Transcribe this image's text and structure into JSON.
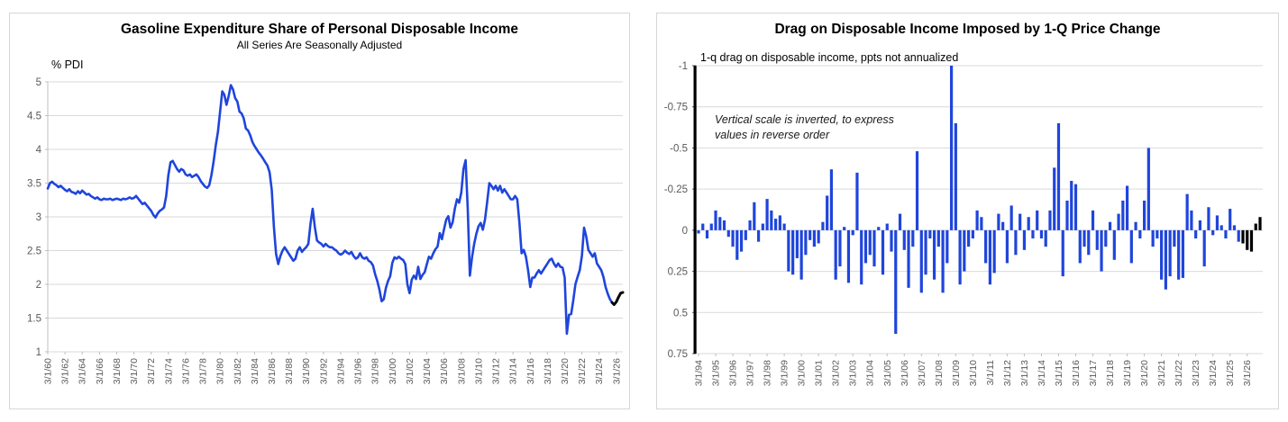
{
  "page": {
    "background": "#ffffff"
  },
  "chart_data": [
    {
      "type": "line",
      "title": "Gasoline Expenditure Share of Personal Disposable Income",
      "subtitle": "All Series Are Seasonally Adjusted",
      "ylabel": "% PDI",
      "x_frequency": "quarterly",
      "x_start": "3/1/60",
      "x_end": "3/1/26",
      "x_tick_every": 8,
      "x_tick_labels": [
        "3/1/60",
        "3/1/62",
        "3/1/64",
        "3/1/66",
        "3/1/68",
        "3/1/70",
        "3/1/72",
        "3/1/74",
        "3/1/76",
        "3/1/78",
        "3/1/80",
        "3/1/82",
        "3/1/84",
        "3/1/86",
        "3/1/88",
        "3/1/90",
        "3/1/92",
        "3/1/94",
        "3/1/96",
        "3/1/98",
        "3/1/00",
        "3/1/02",
        "3/1/04",
        "3/1/06",
        "3/1/08",
        "3/1/10",
        "3/1/12",
        "3/1/14",
        "3/1/16",
        "3/1/18",
        "3/1/20",
        "3/1/22",
        "3/1/24",
        "3/1/26"
      ],
      "y_ticks": [
        5,
        4.5,
        4,
        3.5,
        3,
        2.5,
        2,
        1.5,
        1
      ],
      "y_tick_labels": [
        "5",
        "4.5",
        "4",
        "3.5",
        "3",
        "2.5",
        "2",
        "1.5",
        "1"
      ],
      "ylim": [
        1,
        5
      ],
      "grid": true,
      "legend": "none",
      "line_color": "#1f45dc",
      "forecast_color": "#000000",
      "forecast_start_index": 262,
      "values": [
        3.42,
        3.5,
        3.52,
        3.49,
        3.47,
        3.44,
        3.46,
        3.43,
        3.4,
        3.38,
        3.41,
        3.37,
        3.36,
        3.34,
        3.38,
        3.35,
        3.39,
        3.36,
        3.33,
        3.34,
        3.31,
        3.29,
        3.27,
        3.29,
        3.26,
        3.25,
        3.27,
        3.26,
        3.26,
        3.27,
        3.25,
        3.26,
        3.27,
        3.26,
        3.25,
        3.27,
        3.26,
        3.27,
        3.29,
        3.27,
        3.28,
        3.31,
        3.27,
        3.23,
        3.19,
        3.21,
        3.17,
        3.13,
        3.09,
        3.03,
        2.99,
        3.05,
        3.09,
        3.11,
        3.14,
        3.31,
        3.62,
        3.81,
        3.83,
        3.77,
        3.71,
        3.67,
        3.71,
        3.69,
        3.63,
        3.61,
        3.63,
        3.59,
        3.61,
        3.63,
        3.59,
        3.53,
        3.49,
        3.45,
        3.43,
        3.47,
        3.62,
        3.82,
        4.06,
        4.26,
        4.56,
        4.86,
        4.81,
        4.66,
        4.79,
        4.95,
        4.89,
        4.76,
        4.71,
        4.56,
        4.53,
        4.46,
        4.31,
        4.28,
        4.21,
        4.11,
        4.05,
        4.0,
        3.95,
        3.91,
        3.86,
        3.81,
        3.76,
        3.66,
        3.4,
        2.85,
        2.45,
        2.3,
        2.42,
        2.5,
        2.55,
        2.5,
        2.45,
        2.4,
        2.35,
        2.38,
        2.5,
        2.55,
        2.48,
        2.52,
        2.55,
        2.6,
        2.9,
        3.12,
        2.85,
        2.65,
        2.62,
        2.6,
        2.56,
        2.6,
        2.57,
        2.55,
        2.55,
        2.52,
        2.5,
        2.46,
        2.44,
        2.46,
        2.5,
        2.47,
        2.45,
        2.48,
        2.42,
        2.38,
        2.4,
        2.46,
        2.4,
        2.38,
        2.4,
        2.35,
        2.33,
        2.28,
        2.15,
        2.05,
        1.92,
        1.75,
        1.78,
        1.95,
        2.05,
        2.12,
        2.32,
        2.4,
        2.38,
        2.41,
        2.38,
        2.36,
        2.3,
        2.0,
        1.87,
        2.07,
        2.13,
        2.08,
        2.26,
        2.08,
        2.14,
        2.18,
        2.3,
        2.41,
        2.38,
        2.46,
        2.52,
        2.56,
        2.76,
        2.67,
        2.82,
        2.96,
        3.01,
        2.84,
        2.92,
        3.12,
        3.26,
        3.21,
        3.36,
        3.71,
        3.84,
        3.1,
        2.13,
        2.4,
        2.6,
        2.75,
        2.86,
        2.91,
        2.81,
        2.96,
        3.22,
        3.5,
        3.46,
        3.41,
        3.46,
        3.39,
        3.46,
        3.36,
        3.41,
        3.36,
        3.31,
        3.26,
        3.26,
        3.31,
        3.26,
        2.91,
        2.46,
        2.51,
        2.41,
        2.21,
        1.96,
        2.1,
        2.1,
        2.16,
        2.21,
        2.16,
        2.21,
        2.26,
        2.31,
        2.36,
        2.38,
        2.31,
        2.26,
        2.31,
        2.26,
        2.25,
        2.1,
        1.27,
        1.55,
        1.56,
        1.76,
        2.0,
        2.11,
        2.21,
        2.42,
        2.84,
        2.71,
        2.51,
        2.46,
        2.41,
        2.46,
        2.31,
        2.26,
        2.21,
        2.11,
        1.96,
        1.86,
        1.78,
        1.73,
        1.7,
        1.74,
        1.81,
        1.87,
        1.88
      ]
    },
    {
      "type": "bar",
      "title": "Drag on Disposable Income  Imposed by 1-Q Price Change",
      "top_label": "1-q drag on disposable income, ppts not annualized",
      "annotation_lines": [
        "Vertical scale is inverted, to express",
        "values in reverse order"
      ],
      "x_frequency": "quarterly",
      "x_start": "3/1/94",
      "x_end": "3/1/26",
      "x_tick_every": 4,
      "x_tick_labels": [
        "3/1/94",
        "3/1/95",
        "3/1/96",
        "3/1/97",
        "3/1/98",
        "3/1/99",
        "3/1/00",
        "3/1/01",
        "3/1/02",
        "3/1/03",
        "3/1/04",
        "3/1/05",
        "3/1/06",
        "3/1/07",
        "3/1/08",
        "3/1/09",
        "3/1/10",
        "3/1/11",
        "3/1/12",
        "3/1/13",
        "3/1/14",
        "3/1/15",
        "3/1/16",
        "3/1/17",
        "3/1/18",
        "3/1/19",
        "3/1/20",
        "3/1/21",
        "3/1/22",
        "3/1/23",
        "3/1/24",
        "3/1/25",
        "3/1/26"
      ],
      "y_ticks": [
        -1,
        -0.75,
        -0.5,
        -0.25,
        0,
        0.25,
        0.5,
        0.75
      ],
      "y_tick_labels": [
        "-1",
        "-0.75",
        "-0.5",
        "-0.25",
        "0",
        "0.25",
        "0.5",
        "0.75"
      ],
      "ylim_top_to_bottom": [
        -1,
        0.75
      ],
      "y_axis_inverted": true,
      "grid": true,
      "legend": "none",
      "bar_color": "#1f45dc",
      "forecast_color": "#000000",
      "forecast_start_index": 127,
      "values": [
        0.02,
        -0.04,
        0.05,
        -0.04,
        -0.12,
        -0.08,
        -0.06,
        0.04,
        0.1,
        0.18,
        0.13,
        0.06,
        -0.06,
        -0.17,
        0.07,
        -0.04,
        -0.19,
        -0.12,
        -0.07,
        -0.09,
        -0.04,
        0.25,
        0.27,
        0.17,
        0.3,
        0.15,
        0.06,
        0.1,
        0.08,
        -0.05,
        -0.21,
        -0.37,
        0.3,
        0.22,
        -0.02,
        0.32,
        0.03,
        -0.35,
        0.33,
        0.2,
        0.15,
        0.22,
        -0.02,
        0.27,
        -0.04,
        0.13,
        0.63,
        -0.1,
        0.12,
        0.35,
        0.1,
        -0.48,
        0.38,
        0.27,
        0.05,
        0.3,
        0.1,
        0.38,
        0.2,
        -1.0,
        -0.65,
        0.33,
        0.25,
        0.1,
        0.05,
        -0.12,
        -0.08,
        0.2,
        0.33,
        0.26,
        -0.1,
        -0.05,
        0.2,
        -0.15,
        0.15,
        -0.1,
        0.12,
        -0.08,
        0.05,
        -0.12,
        0.05,
        0.1,
        -0.12,
        -0.38,
        -0.65,
        0.28,
        -0.18,
        -0.3,
        -0.28,
        0.2,
        0.1,
        0.15,
        -0.12,
        0.12,
        0.25,
        0.1,
        -0.05,
        0.18,
        -0.1,
        -0.18,
        -0.27,
        0.2,
        -0.05,
        0.05,
        -0.18,
        -0.5,
        0.1,
        0.05,
        0.3,
        0.36,
        0.28,
        0.1,
        0.3,
        0.29,
        -0.22,
        -0.12,
        0.05,
        -0.06,
        0.22,
        -0.14,
        0.03,
        -0.09,
        -0.03,
        0.05,
        -0.13,
        -0.03,
        0.07,
        0.08,
        0.12,
        0.13,
        -0.04,
        -0.08
      ]
    }
  ],
  "style": {
    "gridline_color": "#d9d9d9",
    "axis_text_color": "#595959",
    "axis_line_color": "#bfbfbf",
    "thick_axis_color": "#000000"
  }
}
